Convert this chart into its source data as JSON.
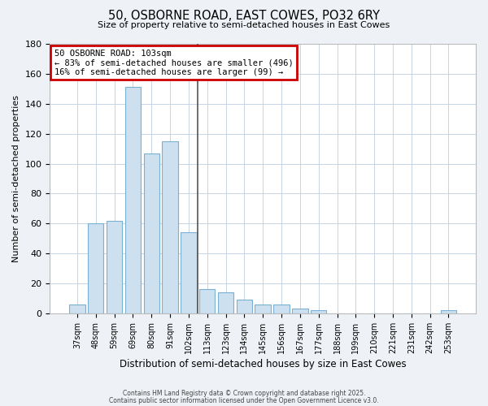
{
  "title": "50, OSBORNE ROAD, EAST COWES, PO32 6RY",
  "subtitle": "Size of property relative to semi-detached houses in East Cowes",
  "xlabel": "Distribution of semi-detached houses by size in East Cowes",
  "ylabel": "Number of semi-detached properties",
  "categories": [
    "37sqm",
    "48sqm",
    "59sqm",
    "69sqm",
    "80sqm",
    "91sqm",
    "102sqm",
    "113sqm",
    "123sqm",
    "134sqm",
    "145sqm",
    "156sqm",
    "167sqm",
    "177sqm",
    "188sqm",
    "199sqm",
    "210sqm",
    "221sqm",
    "231sqm",
    "242sqm",
    "253sqm"
  ],
  "values": [
    6,
    60,
    62,
    151,
    107,
    115,
    54,
    16,
    14,
    9,
    6,
    6,
    3,
    2,
    0,
    0,
    0,
    0,
    0,
    0,
    2
  ],
  "bar_color": "#cce0f0",
  "bar_edge_color": "#7ab0d0",
  "highlight_line_color": "#555555",
  "annotation_box_edge_color": "#cc0000",
  "annotation_title": "50 OSBORNE ROAD: 103sqm",
  "annotation_line2": "← 83% of semi-detached houses are smaller (496)",
  "annotation_line3": "16% of semi-detached houses are larger (99) →",
  "ylim": [
    0,
    180
  ],
  "yticks": [
    0,
    20,
    40,
    60,
    80,
    100,
    120,
    140,
    160,
    180
  ],
  "footer1": "Contains HM Land Registry data © Crown copyright and database right 2025.",
  "footer2": "Contains public sector information licensed under the Open Government Licence v3.0.",
  "bg_color": "#eef2f7",
  "plot_bg_color": "#ffffff",
  "grid_color": "#c5d5e5"
}
